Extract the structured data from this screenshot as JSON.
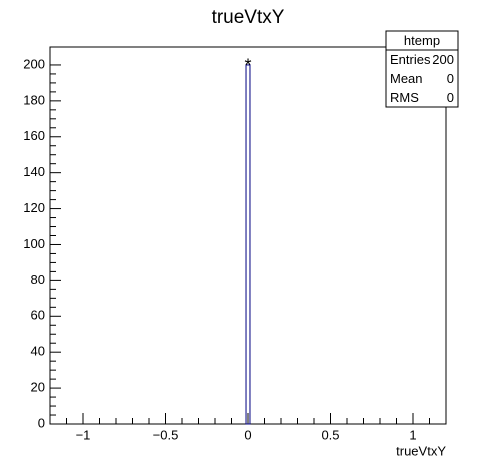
{
  "chart_data": {
    "type": "histogram",
    "title": "trueVtxY",
    "x_label": "trueVtxY",
    "bins": [
      -0.012,
      0.012
    ],
    "counts": [
      200
    ],
    "color": "#000080",
    "marker": "*",
    "xlim": [
      -1.2,
      1.2
    ],
    "ylim": [
      0,
      210
    ],
    "xticks": [
      {
        "value": -1,
        "label": "−1"
      },
      {
        "value": -0.5,
        "label": "−0.5"
      },
      0,
      0.5,
      1
    ],
    "yticks": [
      0,
      20,
      40,
      60,
      80,
      100,
      120,
      140,
      160,
      180,
      200
    ],
    "stats": {
      "title": "htemp",
      "rows": [
        [
          "Entries",
          200
        ],
        [
          "Mean",
          0
        ],
        [
          "RMS",
          0
        ]
      ]
    }
  }
}
